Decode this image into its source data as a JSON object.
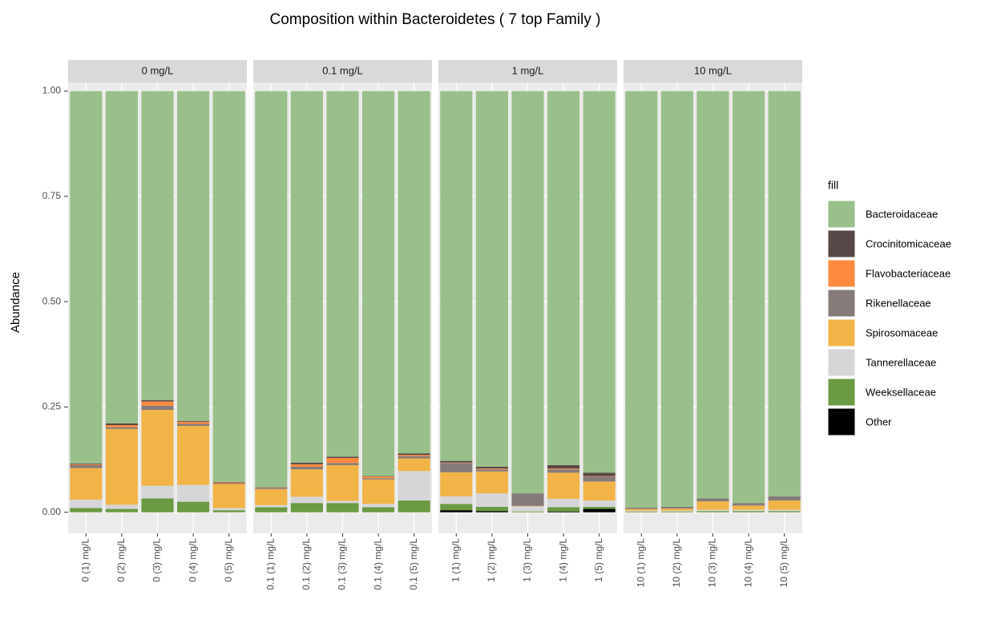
{
  "chart_data": {
    "type": "bar",
    "stacked": true,
    "title": "Composition within Bacteroidetes ( 7 top Family )",
    "ylabel": "Abundance",
    "legend_title": "fill",
    "ylim": [
      -0.05,
      1.02
    ],
    "yticks": [
      {
        "value": 0,
        "label": "0.00"
      },
      {
        "value": 0.25,
        "label": "0.25"
      },
      {
        "value": 0.5,
        "label": "0.50"
      },
      {
        "value": 0.75,
        "label": "0.75"
      },
      {
        "value": 1,
        "label": "1.00"
      }
    ],
    "grid": true,
    "series": [
      {
        "name": "Bacteroidaceae",
        "color": "#99c08a"
      },
      {
        "name": "Crocinitomicaceae",
        "color": "#574746"
      },
      {
        "name": "Flavobacteriaceae",
        "color": "#fc8a3e"
      },
      {
        "name": "Rikenellaceae",
        "color": "#857b79"
      },
      {
        "name": "Spirosomaceae",
        "color": "#f2b447"
      },
      {
        "name": "Tannerellaceae",
        "color": "#d6d6d8"
      },
      {
        "name": "Weeksellaceae",
        "color": "#6a9a42"
      },
      {
        "name": "Other",
        "color": "#000000"
      }
    ],
    "facets": [
      {
        "label": "0 mg/L",
        "categories": [
          "0 (1) mg/L",
          "0 (2) mg/L",
          "0 (3) mg/L",
          "0 (4) mg/L",
          "0 (5) mg/L"
        ],
        "values": [
          [
            0.884,
            0.789,
            0.734,
            0.783,
            0.928
          ],
          [
            0.002,
            0.004,
            0.003,
            0.002,
            0.001
          ],
          [
            0.002,
            0.005,
            0.01,
            0.005,
            0.002
          ],
          [
            0.007,
            0.004,
            0.01,
            0.005,
            0.002
          ],
          [
            0.075,
            0.18,
            0.18,
            0.14,
            0.057
          ],
          [
            0.02,
            0.01,
            0.03,
            0.04,
            0.005
          ],
          [
            0.01,
            0.008,
            0.033,
            0.025,
            0.005
          ],
          [
            0,
            0,
            0,
            0,
            0
          ]
        ]
      },
      {
        "label": "0.1 mg/L",
        "categories": [
          "0.1 (1) mg/L",
          "0.1 (2) mg/L",
          "0.1 (3) mg/L",
          "0.1 (4) mg/L",
          "0.1 (5) mg/L"
        ],
        "values": [
          [
            0.94,
            0.882,
            0.868,
            0.914,
            0.86
          ],
          [
            0.001,
            0.004,
            0.003,
            0.001,
            0.004
          ],
          [
            0.001,
            0.006,
            0.012,
            0.004,
            0.003
          ],
          [
            0.003,
            0.006,
            0.005,
            0.003,
            0.005
          ],
          [
            0.038,
            0.065,
            0.085,
            0.058,
            0.03
          ],
          [
            0.005,
            0.015,
            0.005,
            0.008,
            0.07
          ],
          [
            0.012,
            0.022,
            0.022,
            0.012,
            0.028
          ],
          [
            0,
            0,
            0,
            0,
            0
          ]
        ]
      },
      {
        "label": "1 mg/L",
        "categories": [
          "1 (1) mg/L",
          "1 (2) mg/L",
          "1 (3) mg/L",
          "1 (4) mg/L",
          "1 (5) mg/L"
        ],
        "values": [
          [
            0.878,
            0.892,
            0.955,
            0.888,
            0.906
          ],
          [
            0.004,
            0.004,
            0,
            0.008,
            0.008
          ],
          [
            0.001,
            0.002,
            0,
            0.002,
            0.001
          ],
          [
            0.022,
            0.005,
            0.03,
            0.008,
            0.012
          ],
          [
            0.057,
            0.052,
            0.001,
            0.062,
            0.045
          ],
          [
            0.018,
            0.032,
            0.012,
            0.02,
            0.015
          ],
          [
            0.015,
            0.01,
            0.002,
            0.01,
            0.005
          ],
          [
            0.005,
            0.003,
            0,
            0.002,
            0.008
          ]
        ]
      },
      {
        "label": "10 mg/L",
        "categories": [
          "10 (1) mg/L",
          "10 (2) mg/L",
          "10 (3) mg/L",
          "10 (4) mg/L",
          "10 (5) mg/L"
        ],
        "values": [
          [
            0.989,
            0.987,
            0.967,
            0.978,
            0.962
          ],
          [
            0,
            0,
            0,
            0,
            0
          ],
          [
            0,
            0,
            0,
            0,
            0
          ],
          [
            0.003,
            0.004,
            0.007,
            0.006,
            0.01
          ],
          [
            0.004,
            0.005,
            0.02,
            0.01,
            0.022
          ],
          [
            0.002,
            0.002,
            0.003,
            0.003,
            0.003
          ],
          [
            0.002,
            0.002,
            0.003,
            0.003,
            0.003
          ],
          [
            0,
            0,
            0,
            0,
            0
          ]
        ]
      }
    ]
  }
}
